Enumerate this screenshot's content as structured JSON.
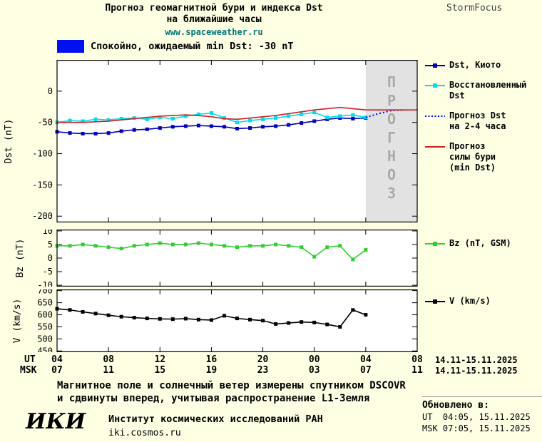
{
  "colors": {
    "background": "#FFFFE4",
    "plot_bg": "#FFFFFF",
    "forecast_bg": "#E2E2E2",
    "watermark": "#AAAAAA",
    "dst_kyoto": "#0000BB",
    "dst_restored": "#00DDEE",
    "dst_forecast": "#0000FF",
    "storm_forecast": "#CC2020",
    "bz": "#33CC33",
    "v": "#000000",
    "banner_swatch": "#0010F0",
    "website": "#007777"
  },
  "header": {
    "title_line1": "Прогноз геомагнитной бури и индекса Dst",
    "title_line2": "на ближайшие часы",
    "website": "www.spaceweather.ru",
    "brand": "StormFocus"
  },
  "banner": {
    "text": "Спокойно, ожидаемый min Dst: -30 nT"
  },
  "watermark": "ПРОГНОЗ",
  "chart_data": [
    {
      "type": "line",
      "name": "dst",
      "title": "Прогноз геомагнитной бури и индекса Dst на ближайшие часы",
      "ylabel": "Dst (nT)",
      "ylim": [
        -210,
        50
      ],
      "yticks": [
        0,
        -50,
        -100,
        -150,
        -200
      ],
      "xlim": [
        4,
        32
      ],
      "xlabel": "UT (часы), 14.11-15.11.2025",
      "forecast_region": [
        28,
        32
      ],
      "series": [
        {
          "name": "Dst, Киото",
          "color_key": "dst_kyoto",
          "marker": true,
          "style": "solid",
          "x": [
            4,
            5,
            6,
            7,
            8,
            9,
            10,
            11,
            12,
            13,
            14,
            15,
            16,
            17,
            18,
            19,
            20,
            21,
            22,
            23,
            24,
            25,
            26,
            27,
            28
          ],
          "values": [
            -65,
            -67,
            -68,
            -68,
            -67,
            -64,
            -62,
            -61,
            -59,
            -57,
            -56,
            -55,
            -56,
            -57,
            -60,
            -59,
            -57,
            -56,
            -54,
            -51,
            -48,
            -45,
            -43,
            -44,
            -43
          ]
        },
        {
          "name": "Восстановленный Dst",
          "color_key": "dst_restored",
          "marker": true,
          "style": "solid",
          "x": [
            4,
            5,
            6,
            7,
            8,
            9,
            10,
            11,
            12,
            13,
            14,
            15,
            16,
            17,
            18,
            19,
            20,
            21,
            22,
            23,
            24,
            25,
            26,
            27,
            28
          ],
          "values": [
            -50,
            -47,
            -48,
            -45,
            -46,
            -44,
            -43,
            -45,
            -42,
            -44,
            -40,
            -37,
            -35,
            -43,
            -50,
            -47,
            -45,
            -43,
            -40,
            -37,
            -34,
            -42,
            -40,
            -38,
            -42
          ]
        },
        {
          "name": "Прогноз Dst на 2-4 часа",
          "color_key": "dst_forecast",
          "marker": false,
          "style": "dotted",
          "x": [
            28,
            29,
            30,
            31
          ],
          "values": [
            -42,
            -36,
            -31,
            -30
          ]
        },
        {
          "name": "Прогноз силы бури (min Dst)",
          "color_key": "storm_forecast",
          "marker": false,
          "style": "solid",
          "x": [
            4,
            5,
            6,
            7,
            8,
            9,
            10,
            11,
            12,
            13,
            14,
            15,
            16,
            17,
            18,
            19,
            20,
            21,
            22,
            23,
            24,
            25,
            26,
            27,
            28,
            29,
            30,
            31,
            32
          ],
          "values": [
            -50,
            -50,
            -50,
            -49,
            -48,
            -46,
            -44,
            -42,
            -40,
            -39,
            -38,
            -39,
            -41,
            -44,
            -45,
            -43,
            -41,
            -39,
            -36,
            -33,
            -30,
            -28,
            -26,
            -28,
            -30,
            -30,
            -30,
            -30,
            -30
          ]
        }
      ]
    },
    {
      "type": "line",
      "name": "bz",
      "ylabel": "Bz (nT)",
      "ylim": [
        -10.5,
        10.5
      ],
      "yticks": [
        10,
        5,
        0,
        -5,
        -10
      ],
      "xlim": [
        4,
        32
      ],
      "series": [
        {
          "name": "Bz (nT, GSM)",
          "color_key": "bz",
          "marker": true,
          "style": "solid",
          "x": [
            4,
            5,
            6,
            7,
            8,
            9,
            10,
            11,
            12,
            13,
            14,
            15,
            16,
            17,
            18,
            19,
            20,
            21,
            22,
            23,
            24,
            25,
            26,
            27,
            28
          ],
          "values": [
            4.5,
            4.5,
            5,
            4.5,
            4,
            3.5,
            4.5,
            5,
            5.5,
            5,
            5,
            5.5,
            5,
            4.5,
            4,
            4.5,
            4.5,
            5,
            4.5,
            4,
            0.5,
            4,
            4.5,
            -0.5,
            3
          ]
        }
      ]
    },
    {
      "type": "line",
      "name": "v",
      "ylabel": "V (km/s)",
      "ylim": [
        445,
        705
      ],
      "yticks": [
        700,
        650,
        600,
        550,
        500,
        450
      ],
      "xlim": [
        4,
        32
      ],
      "series": [
        {
          "name": "V (km/s)",
          "color_key": "v",
          "marker": true,
          "style": "solid",
          "x": [
            4,
            5,
            6,
            7,
            8,
            9,
            10,
            11,
            12,
            13,
            14,
            15,
            16,
            17,
            18,
            19,
            20,
            21,
            22,
            23,
            24,
            25,
            26,
            27,
            28
          ],
          "values": [
            625,
            620,
            612,
            605,
            598,
            592,
            588,
            585,
            583,
            582,
            584,
            580,
            578,
            596,
            585,
            580,
            576,
            562,
            566,
            570,
            568,
            560,
            550,
            620,
            600
          ]
        }
      ]
    }
  ],
  "legend_main": [
    {
      "lines": [
        "Dst, Киото"
      ],
      "marker": "square-line",
      "color_key": "dst_kyoto"
    },
    {
      "lines": [
        "Восстановленный",
        "Dst"
      ],
      "marker": "square-line",
      "color_key": "dst_restored"
    },
    {
      "lines": [
        "Прогноз Dst",
        "на 2-4 часа"
      ],
      "marker": "dotted-line",
      "color_key": "dst_forecast"
    },
    {
      "lines": [
        "Прогноз",
        "силы бури",
        "(min Dst)"
      ],
      "marker": "solid-line",
      "color_key": "storm_forecast"
    }
  ],
  "legend_bz": {
    "lines": [
      "Bz (nT, GSM)"
    ],
    "marker": "square-line",
    "color_key": "bz"
  },
  "legend_v": {
    "lines": [
      "V (km/s)"
    ],
    "marker": "square-line",
    "color_key": "v"
  },
  "time_axis": {
    "ut_label": "UT",
    "msk_label": "MSK",
    "tick_pos": [
      4,
      8,
      12,
      16,
      20,
      24,
      28,
      32
    ],
    "ut_ticks": [
      "04",
      "08",
      "12",
      "16",
      "20",
      "00",
      "04",
      "08"
    ],
    "msk_ticks": [
      "07",
      "11",
      "15",
      "19",
      "23",
      "03",
      "07",
      "11"
    ],
    "date_range": "14.11-15.11.2025"
  },
  "footer": {
    "note_line1": "Магнитное поле и солнечный ветер измерены спутником DSCOVR",
    "note_line2": "и сдвинуты вперед, учитывая распространение L1-Земля",
    "logo": "ИКИ",
    "institute": "Институт космических исследований РАН",
    "site": "iki.cosmos.ru",
    "updated_label": "Обновлено в:",
    "updated_ut": "UT  04:05, 15.11.2025",
    "updated_msk": "MSK 07:05, 15.11.2025"
  }
}
